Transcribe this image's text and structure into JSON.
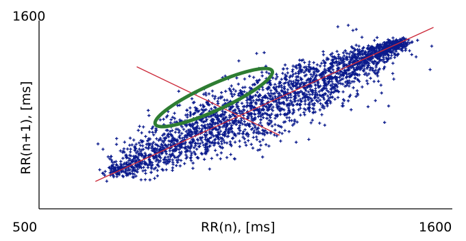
{
  "chart_data": {
    "type": "scatter",
    "title": "",
    "xlabel": "RR(n), [ms]",
    "ylabel": "RR(n+1), [ms]",
    "xlim": [
      500,
      1600
    ],
    "ylim": [
      500,
      1600
    ],
    "x_tick_labels": [
      "500",
      "1600"
    ],
    "y_tick_labels": [
      "1600"
    ],
    "grid": false,
    "colors": {
      "points": "#0a1a8c",
      "identity_line": "#cc2a3a",
      "perpendicular_line": "#cc2a3a",
      "ellipse": "#2e7d32",
      "axis": "#000000"
    },
    "series": [
      {
        "kind": "points",
        "description_values": "dense RR interval cloud along identity line",
        "x_range": [
          650,
          1560
        ],
        "y_range": [
          660,
          1580
        ]
      }
    ],
    "identity_line": {
      "x": [
        650,
        1550
      ],
      "y": [
        660,
        1560
      ]
    },
    "perpendicular_line": {
      "x": [
        760,
        1140
      ],
      "y": [
        1330,
        930
      ]
    },
    "ellipse": {
      "cx": 965,
      "cy": 1150,
      "sd1": 44,
      "sd2": 220,
      "angle_deg": 45
    }
  }
}
